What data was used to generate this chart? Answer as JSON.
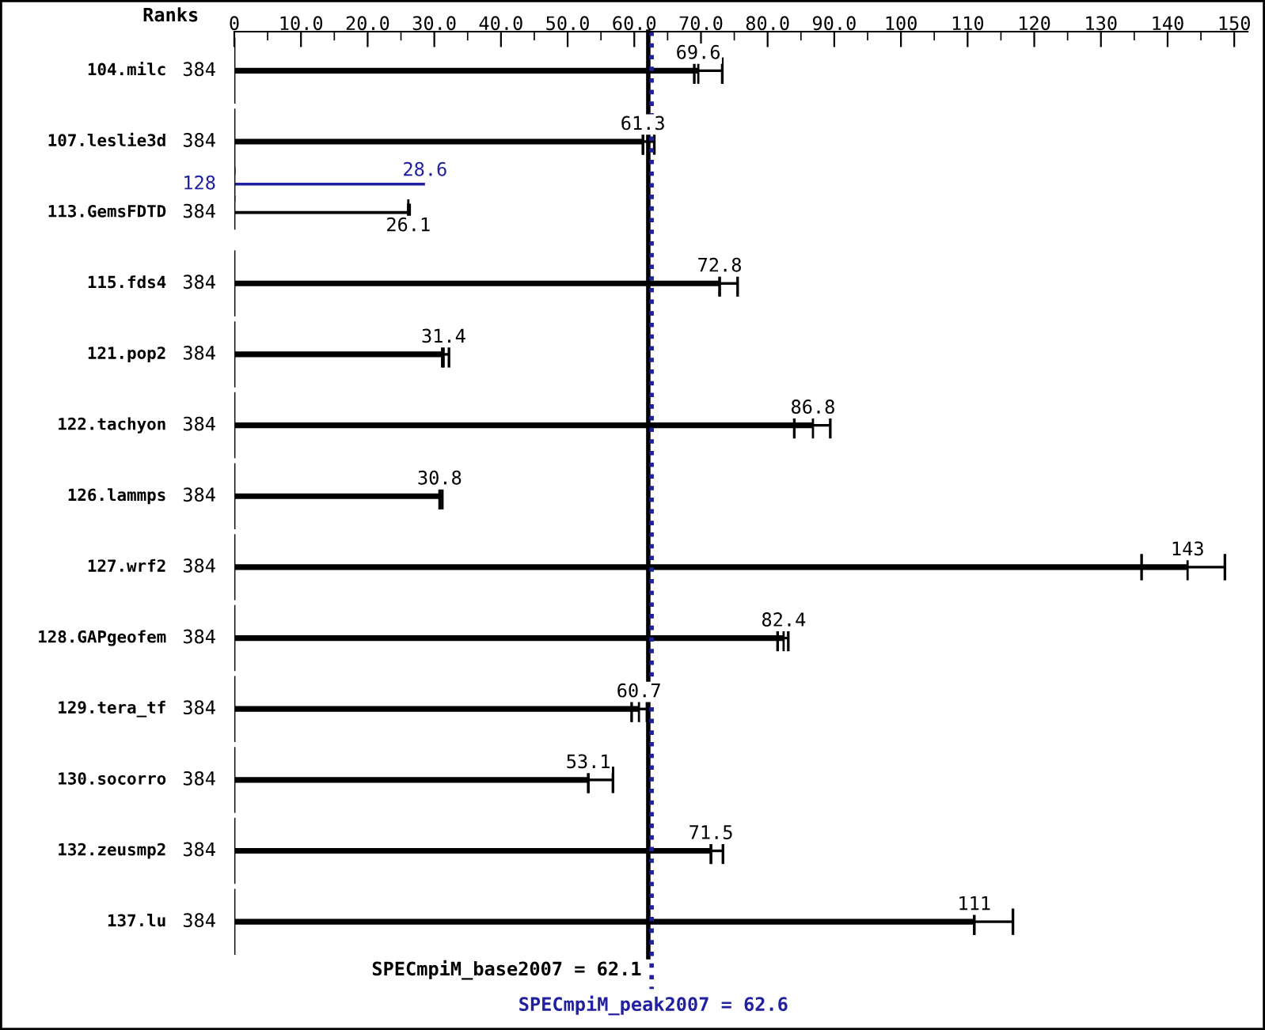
{
  "chart_data": {
    "type": "bar",
    "orientation": "horizontal",
    "categories": [
      "104.milc",
      "107.leslie3d",
      "113.GemsFDTD",
      "115.fds4",
      "121.pop2",
      "122.tachyon",
      "126.lammps",
      "127.wrf2",
      "128.GAPgeofem",
      "129.tera_tf",
      "130.socorro",
      "132.zeusmp2",
      "137.lu"
    ],
    "series": [
      {
        "color": "#2020a0",
        "values": [
          null,
          null,
          28.6,
          null,
          null,
          null,
          null,
          null,
          null,
          null,
          null,
          null,
          null
        ],
        "value_labels": [
          null,
          null,
          "28.6",
          null,
          null,
          null,
          null,
          null,
          null,
          null,
          null,
          null,
          null
        ]
      },
      {
        "color": "#000000",
        "values": [
          69.6,
          61.3,
          26.1,
          72.8,
          31.4,
          86.8,
          30.8,
          143,
          82.4,
          60.7,
          53.1,
          71.5,
          111
        ],
        "errors": [
          [
            69.0,
            73.2
          ],
          [
            61.3,
            63.0
          ],
          [
            26.1,
            26.3
          ],
          [
            72.8,
            75.5
          ],
          [
            31.2,
            32.2
          ],
          [
            84.0,
            89.4
          ],
          [
            30.8,
            31.2
          ],
          [
            136.1,
            148.6
          ],
          [
            81.5,
            83.1
          ],
          [
            59.6,
            61.9
          ],
          [
            53.1,
            56.8
          ],
          [
            71.5,
            73.3
          ],
          [
            111,
            116.8
          ]
        ],
        "value_labels": [
          "69.6",
          "61.3",
          "26.1",
          "72.8",
          "31.4",
          "86.8",
          "30.8",
          "143",
          "82.4",
          "60.7",
          "53.1",
          "71.5",
          "111"
        ]
      }
    ],
    "xlim": [
      0,
      152
    ],
    "xticks": [
      0,
      {
        "value": 10,
        "label": "10.0"
      },
      {
        "value": 20,
        "label": "20.0"
      },
      {
        "value": 30,
        "label": "30.0"
      },
      {
        "value": 40,
        "label": "40.0"
      },
      {
        "value": 50,
        "label": "50.0"
      },
      {
        "value": 60,
        "label": "60.0"
      },
      {
        "value": 70,
        "label": "70.0"
      },
      {
        "value": 80,
        "label": "80.0"
      },
      {
        "value": 90,
        "label": "90.0"
      },
      100,
      110,
      120,
      130,
      140,
      150
    ],
    "tick_labels": "x",
    "grid": false,
    "ref_lines": [
      {
        "axis": "x",
        "value": 62.1,
        "label": "SPECmpiM_base2007 = 62.1",
        "color": "#000000",
        "line_style": "solid"
      },
      {
        "axis": "x",
        "value": 62.6,
        "label": "SPECmpiM_peak2007 = 62.6",
        "color": "#2020a0",
        "line_style": "dotted"
      }
    ],
    "annotations": [
      "Ranks",
      "384",
      "384",
      "128",
      "384",
      "384",
      "384",
      "384",
      "384",
      "384",
      "384",
      "384",
      "384",
      "384",
      "384"
    ]
  }
}
